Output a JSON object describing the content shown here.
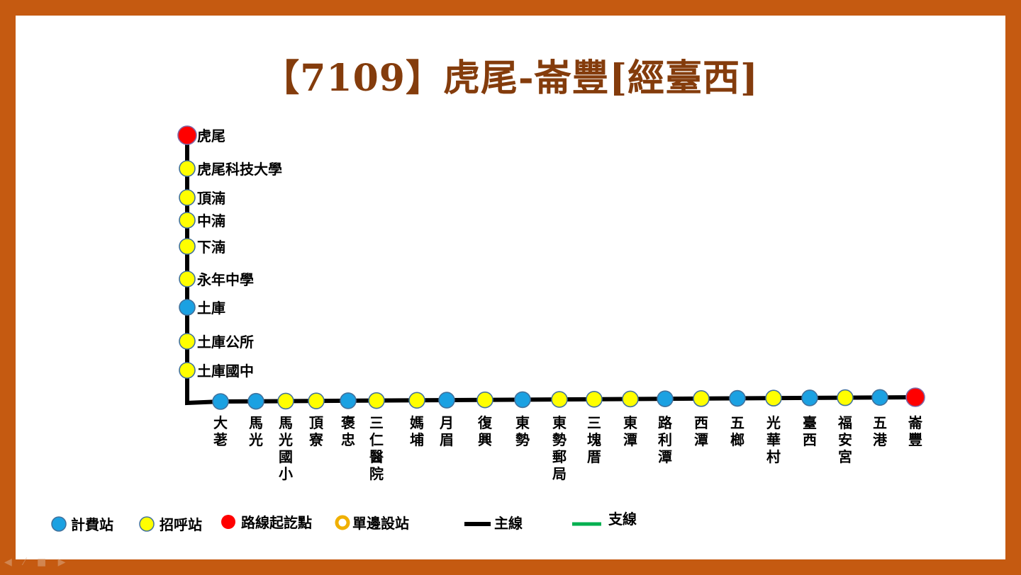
{
  "title": "【7109】虎尾-崙豐[經臺西]",
  "colors": {
    "fare": "#1ba1e2",
    "call": "#ffff00",
    "terminal": "#ff0000",
    "oneside_ring": "#f0b000",
    "main_line": "#000000",
    "branch_line": "#00b050",
    "frame": "#c55a11",
    "title": "#843c0c"
  },
  "stops": [
    {
      "name": "虎尾",
      "type": "terminal"
    },
    {
      "name": "虎尾科技大學",
      "type": "call"
    },
    {
      "name": "頂湳",
      "type": "call"
    },
    {
      "name": "中湳",
      "type": "call"
    },
    {
      "name": "下湳",
      "type": "call"
    },
    {
      "name": "永年中學",
      "type": "call"
    },
    {
      "name": "土庫",
      "type": "fare"
    },
    {
      "name": "土庫公所",
      "type": "call"
    },
    {
      "name": "土庫國中",
      "type": "call"
    },
    {
      "name": "大荖",
      "type": "fare"
    },
    {
      "name": "馬光",
      "type": "fare"
    },
    {
      "name": "馬光國小",
      "type": "call"
    },
    {
      "name": "頂寮",
      "type": "call"
    },
    {
      "name": "褒忠",
      "type": "fare"
    },
    {
      "name": "三仁醫院",
      "type": "call"
    },
    {
      "name": "媽埔",
      "type": "call"
    },
    {
      "name": "月眉",
      "type": "fare"
    },
    {
      "name": "復興",
      "type": "call"
    },
    {
      "name": "東勢",
      "type": "fare"
    },
    {
      "name": "東勢郵局",
      "type": "call"
    },
    {
      "name": "三塊厝",
      "type": "call"
    },
    {
      "name": "東潭",
      "type": "call"
    },
    {
      "name": "路利潭",
      "type": "fare"
    },
    {
      "name": "西潭",
      "type": "call"
    },
    {
      "name": "五榔",
      "type": "fare"
    },
    {
      "name": "光華村",
      "type": "call"
    },
    {
      "name": "臺西",
      "type": "fare"
    },
    {
      "name": "福安宮",
      "type": "call"
    },
    {
      "name": "五港",
      "type": "fare"
    },
    {
      "name": "崙豐",
      "type": "terminal"
    }
  ],
  "legend": {
    "fare": "計費站",
    "call": "招呼站",
    "terminal": "路線起訖點",
    "oneside": "單邊設站",
    "main": "主線",
    "branch": "支線"
  }
}
